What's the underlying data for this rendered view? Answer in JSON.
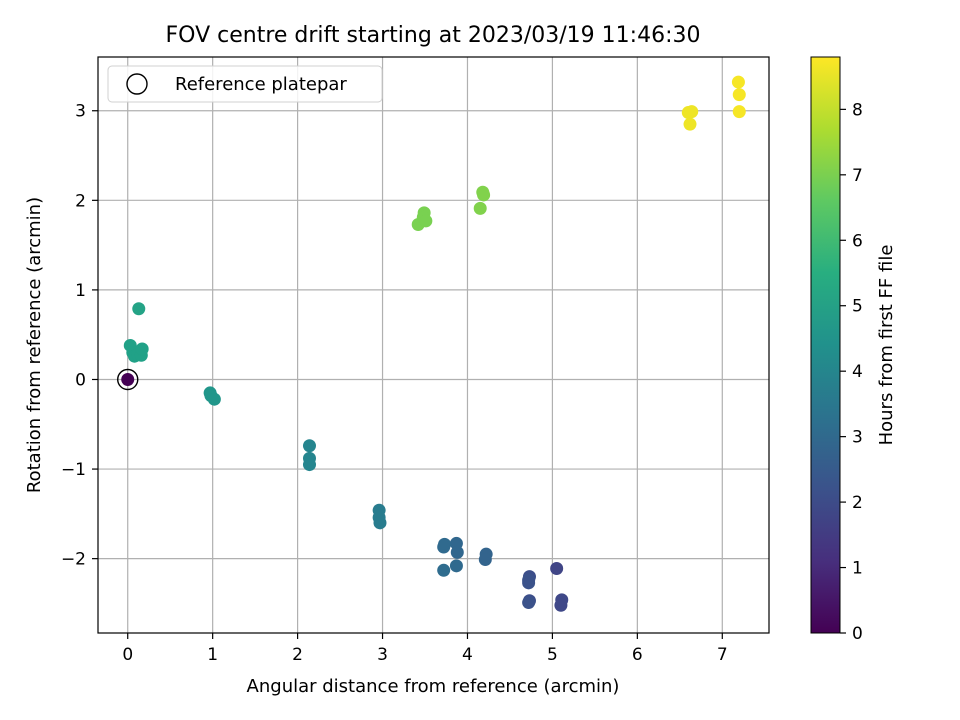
{
  "chart_data": {
    "type": "scatter",
    "title": "FOV centre drift starting at 2023/03/19 11:46:30",
    "xlabel": "Angular distance from reference (arcmin)",
    "ylabel": "Rotation from reference (arcmin)",
    "xlim": [
      -0.35,
      7.55
    ],
    "ylim": [
      -2.83,
      3.6
    ],
    "xticks": [
      0,
      1,
      2,
      3,
      4,
      5,
      6,
      7
    ],
    "yticks": [
      -2,
      -1,
      0,
      1,
      2,
      3
    ],
    "grid": true,
    "legend": {
      "position": "top-left",
      "entries": [
        "Reference platepar"
      ]
    },
    "reference_point": {
      "x": 0,
      "y": 0
    },
    "colorbar": {
      "label": "Hours from first FF file",
      "range": [
        0,
        8.8
      ],
      "ticks": [
        0,
        1,
        2,
        3,
        4,
        5,
        6,
        7,
        8
      ],
      "colormap": "viridis"
    },
    "points": [
      {
        "x": 0.0,
        "y": 0.0,
        "h": 0.0
      },
      {
        "x": 5.05,
        "y": -2.11,
        "h": 1.8
      },
      {
        "x": 5.11,
        "y": -2.46,
        "h": 1.9
      },
      {
        "x": 5.1,
        "y": -2.52,
        "h": 1.9
      },
      {
        "x": 4.73,
        "y": -2.2,
        "h": 2.1
      },
      {
        "x": 4.73,
        "y": -2.47,
        "h": 2.1
      },
      {
        "x": 4.72,
        "y": -2.49,
        "h": 2.2
      },
      {
        "x": 4.72,
        "y": -2.24,
        "h": 2.2
      },
      {
        "x": 4.72,
        "y": -2.27,
        "h": 2.2
      },
      {
        "x": 4.22,
        "y": -1.95,
        "h": 2.8
      },
      {
        "x": 4.21,
        "y": -2.01,
        "h": 2.8
      },
      {
        "x": 3.87,
        "y": -1.83,
        "h": 2.9
      },
      {
        "x": 3.88,
        "y": -1.93,
        "h": 2.9
      },
      {
        "x": 3.87,
        "y": -2.08,
        "h": 3.0
      },
      {
        "x": 3.73,
        "y": -1.84,
        "h": 3.0
      },
      {
        "x": 3.72,
        "y": -1.87,
        "h": 3.0
      },
      {
        "x": 3.72,
        "y": -2.13,
        "h": 3.1
      },
      {
        "x": 2.96,
        "y": -1.46,
        "h": 3.7
      },
      {
        "x": 2.96,
        "y": -1.54,
        "h": 3.7
      },
      {
        "x": 2.97,
        "y": -1.6,
        "h": 3.7
      },
      {
        "x": 2.14,
        "y": -0.74,
        "h": 4.0
      },
      {
        "x": 2.14,
        "y": -0.88,
        "h": 4.0
      },
      {
        "x": 2.14,
        "y": -0.95,
        "h": 4.0
      },
      {
        "x": 0.97,
        "y": -0.15,
        "h": 4.6
      },
      {
        "x": 0.98,
        "y": -0.18,
        "h": 4.6
      },
      {
        "x": 1.02,
        "y": -0.22,
        "h": 4.6
      },
      {
        "x": 0.03,
        "y": 0.38,
        "h": 5.0
      },
      {
        "x": 0.06,
        "y": 0.3,
        "h": 5.0
      },
      {
        "x": 0.08,
        "y": 0.26,
        "h": 5.0
      },
      {
        "x": 0.12,
        "y": 0.28,
        "h": 5.0
      },
      {
        "x": 0.16,
        "y": 0.27,
        "h": 5.0
      },
      {
        "x": 0.17,
        "y": 0.34,
        "h": 5.0
      },
      {
        "x": 0.13,
        "y": 0.79,
        "h": 5.1
      },
      {
        "x": 3.42,
        "y": 1.73,
        "h": 7.0
      },
      {
        "x": 3.49,
        "y": 1.86,
        "h": 7.0
      },
      {
        "x": 3.48,
        "y": 1.81,
        "h": 7.0
      },
      {
        "x": 3.51,
        "y": 1.77,
        "h": 7.0
      },
      {
        "x": 4.15,
        "y": 1.91,
        "h": 7.1
      },
      {
        "x": 4.18,
        "y": 2.09,
        "h": 7.1
      },
      {
        "x": 4.19,
        "y": 2.06,
        "h": 7.1
      },
      {
        "x": 6.6,
        "y": 2.98,
        "h": 8.6
      },
      {
        "x": 6.64,
        "y": 2.99,
        "h": 8.6
      },
      {
        "x": 6.62,
        "y": 2.85,
        "h": 8.6
      },
      {
        "x": 7.19,
        "y": 3.32,
        "h": 8.7
      },
      {
        "x": 7.2,
        "y": 3.18,
        "h": 8.7
      },
      {
        "x": 7.2,
        "y": 2.99,
        "h": 8.7
      }
    ]
  }
}
